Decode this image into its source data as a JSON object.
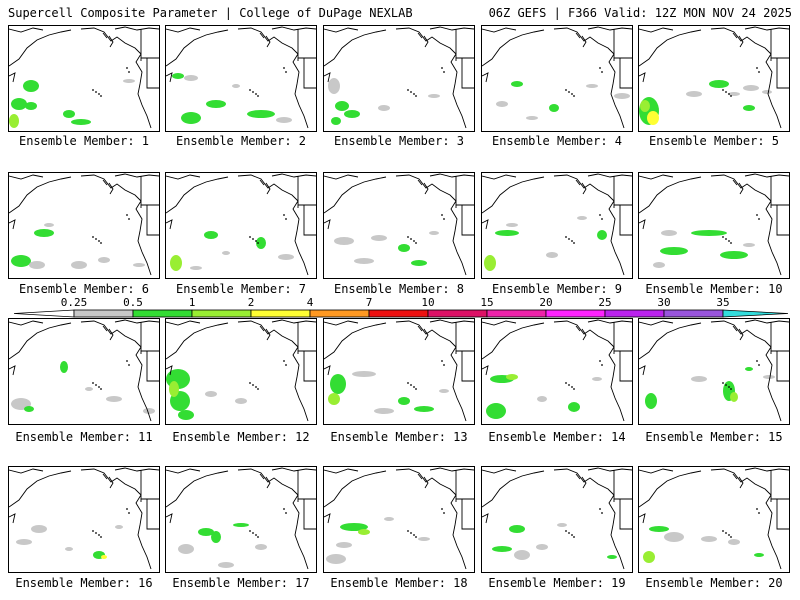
{
  "header": {
    "title": "Supercell Composite Parameter | College of DuPage NEXLAB",
    "run_info": "06Z GEFS | F366 Valid: 12Z MON NOV 24 2025"
  },
  "caption_prefix": "Ensemble Member:",
  "members": [
    {
      "label": "Ensemble Member: 1"
    },
    {
      "label": "Ensemble Member: 2"
    },
    {
      "label": "Ensemble Member: 3"
    },
    {
      "label": "Ensemble Member: 4"
    },
    {
      "label": "Ensemble Member: 5"
    },
    {
      "label": "Ensemble Member: 6"
    },
    {
      "label": "Ensemble Member: 7"
    },
    {
      "label": "Ensemble Member: 8"
    },
    {
      "label": "Ensemble Member: 9"
    },
    {
      "label": "Ensemble Member: 10"
    },
    {
      "label": "Ensemble Member: 11"
    },
    {
      "label": "Ensemble Member: 12"
    },
    {
      "label": "Ensemble Member: 13"
    },
    {
      "label": "Ensemble Member: 14"
    },
    {
      "label": "Ensemble Member: 15"
    },
    {
      "label": "Ensemble Member: 16"
    },
    {
      "label": "Ensemble Member: 17"
    },
    {
      "label": "Ensemble Member: 18"
    },
    {
      "label": "Ensemble Member: 19"
    },
    {
      "label": "Ensemble Member: 20"
    }
  ],
  "colorbar": {
    "thresholds": [
      "0.25",
      "0.5",
      "1",
      "2",
      "4",
      "7",
      "10",
      "15",
      "20",
      "25",
      "30",
      "35"
    ],
    "colors": [
      "#c8c8c8",
      "#33dd33",
      "#99ee33",
      "#ffff33",
      "#ff9922",
      "#ee1111",
      "#dd1166",
      "#ee22aa",
      "#ff22ff",
      "#bb22ee",
      "#9955dd",
      "#33dddd"
    ]
  }
}
